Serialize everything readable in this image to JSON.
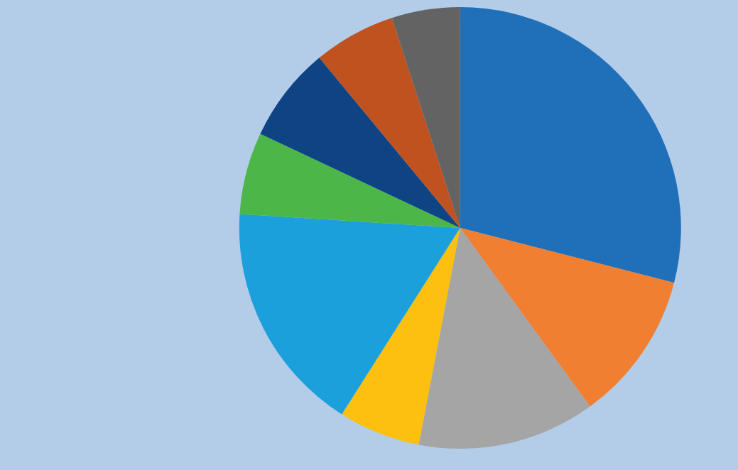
{
  "chart_data": {
    "type": "pie",
    "categories": [
      null,
      null,
      null,
      null,
      null,
      null,
      null,
      null,
      null
    ],
    "values": [
      29,
      11,
      13,
      6,
      17,
      6,
      7,
      6,
      5
    ],
    "colors": [
      "#1f70b9",
      "#f07f31",
      "#a5a5a5",
      "#fdc010",
      "#1ba0dc",
      "#4cb748",
      "#0e4483",
      "#c0521f",
      "#636363"
    ],
    "legend": false
  }
}
